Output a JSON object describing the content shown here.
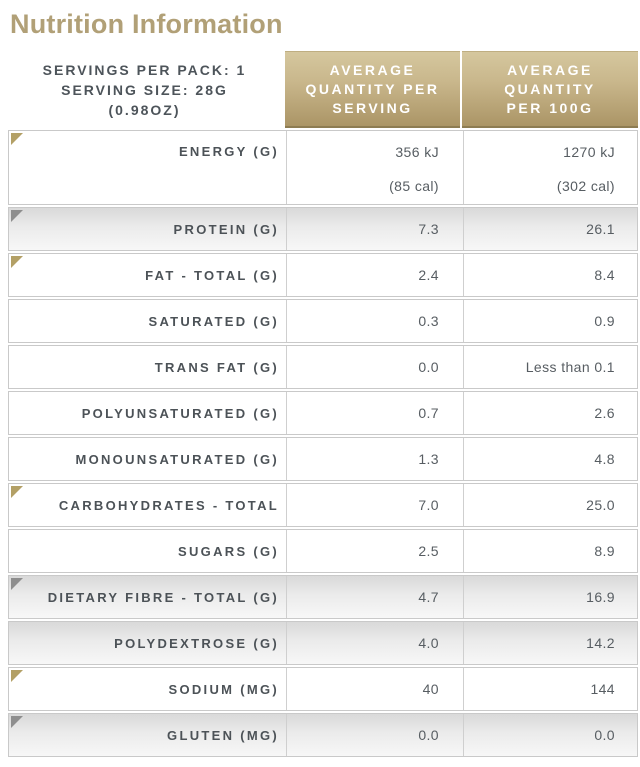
{
  "title": "Nutrition Information",
  "colors": {
    "title_gold": "#b1a077",
    "header_gradient_top": "#d5c79e",
    "header_gradient_bottom": "#ab9566",
    "header_border_dark": "#8d7c52",
    "header_text": "#ffffff",
    "label_text": "#4c5257",
    "value_text": "#575d62",
    "row_border": "#c9c9c9",
    "shaded_row_top": "#d9d9d9",
    "marker_gold": "#b3a066",
    "marker_gray": "#8e8e8e"
  },
  "table": {
    "meta_lines": [
      "SERVINGS PER PACK: 1",
      "SERVING SIZE: 28G",
      "(0.98OZ)"
    ],
    "columns": [
      {
        "name": "serving",
        "lines": [
          "AVERAGE",
          "QUANTITY PER",
          "SERVING"
        ]
      },
      {
        "name": "per100g",
        "lines": [
          "AVERAGE",
          "QUANTITY",
          "PER 100G"
        ]
      }
    ],
    "rows": [
      {
        "label": "ENERGY (G)",
        "marker": "gold",
        "shaded": false,
        "tall": true,
        "serving": [
          "356 kJ",
          "(85 cal)"
        ],
        "per100g": [
          "1270 kJ",
          "(302 cal)"
        ]
      },
      {
        "label": "PROTEIN (G)",
        "marker": "gray",
        "shaded": true,
        "tall": false,
        "serving": [
          "7.3"
        ],
        "per100g": [
          "26.1"
        ]
      },
      {
        "label": "FAT - TOTAL (G)",
        "marker": "gold",
        "shaded": false,
        "tall": false,
        "serving": [
          "2.4"
        ],
        "per100g": [
          "8.4"
        ]
      },
      {
        "label": "SATURATED (G)",
        "marker": null,
        "shaded": false,
        "tall": false,
        "serving": [
          "0.3"
        ],
        "per100g": [
          "0.9"
        ]
      },
      {
        "label": "TRANS FAT (G)",
        "marker": null,
        "shaded": false,
        "tall": false,
        "serving": [
          "0.0"
        ],
        "per100g": [
          "Less than 0.1"
        ]
      },
      {
        "label": "POLYUNSATURATED (G)",
        "marker": null,
        "shaded": false,
        "tall": false,
        "serving": [
          "0.7"
        ],
        "per100g": [
          "2.6"
        ]
      },
      {
        "label": "MONOUNSATURATED (G)",
        "marker": null,
        "shaded": false,
        "tall": false,
        "serving": [
          "1.3"
        ],
        "per100g": [
          "4.8"
        ]
      },
      {
        "label": "CARBOHYDRATES - TOTAL",
        "marker": "gold",
        "shaded": false,
        "tall": false,
        "serving": [
          "7.0"
        ],
        "per100g": [
          "25.0"
        ]
      },
      {
        "label": "SUGARS (G)",
        "marker": null,
        "shaded": false,
        "tall": false,
        "serving": [
          "2.5"
        ],
        "per100g": [
          "8.9"
        ]
      },
      {
        "label": "DIETARY FIBRE - TOTAL (G)",
        "marker": "gray",
        "shaded": true,
        "tall": false,
        "serving": [
          "4.7"
        ],
        "per100g": [
          "16.9"
        ]
      },
      {
        "label": "POLYDEXTROSE (G)",
        "marker": null,
        "shaded": true,
        "tall": false,
        "serving": [
          "4.0"
        ],
        "per100g": [
          "14.2"
        ]
      },
      {
        "label": "SODIUM (MG)",
        "marker": "gold",
        "shaded": false,
        "tall": false,
        "serving": [
          "40"
        ],
        "per100g": [
          "144"
        ]
      },
      {
        "label": "GLUTEN (MG)",
        "marker": "gray",
        "shaded": true,
        "tall": false,
        "serving": [
          "0.0"
        ],
        "per100g": [
          "0.0"
        ]
      }
    ]
  }
}
